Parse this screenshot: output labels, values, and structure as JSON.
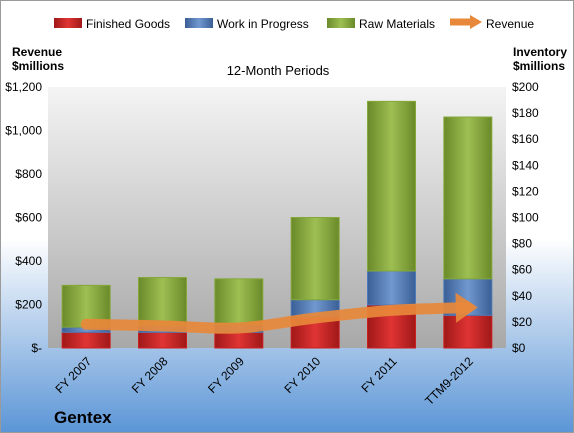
{
  "chart_data": {
    "type": "bar",
    "stacked": true,
    "subtitle": "12-Month Periods",
    "company": "Gentex",
    "categories": [
      "FY 2007",
      "FY 2008",
      "FY 2009",
      "FY 2010",
      "FY 2011",
      "TTM9-2012"
    ],
    "series": [
      {
        "name": "Finished Goods",
        "color": "#cc1f1f",
        "values": [
          12,
          12,
          12,
          24,
          33,
          25
        ]
      },
      {
        "name": "Work in Progress",
        "color": "#4f79b8",
        "values": [
          4,
          5,
          6,
          13,
          26,
          28
        ]
      },
      {
        "name": "Raw Materials",
        "color": "#84a83a",
        "values": [
          32,
          37,
          35,
          63,
          130,
          124
        ]
      }
    ],
    "line_series": {
      "name": "Revenue",
      "color": "#e8883a",
      "values": [
        109,
        102,
        92,
        138,
        173,
        186
      ]
    },
    "left_axis": {
      "title_line1": "Revenue",
      "title_line2": "$millions",
      "ylim": [
        0,
        1200
      ],
      "tick_labels": [
        "$-",
        "$200",
        "$400",
        "$600",
        "$800",
        "$1,000",
        "$1,200"
      ]
    },
    "right_axis": {
      "title_line1": "Inventory",
      "title_line2": "$millions",
      "ylim": [
        0,
        200
      ],
      "tick_labels": [
        "$0",
        "$20",
        "$40",
        "$60",
        "$80",
        "$100",
        "$120",
        "$140",
        "$160",
        "$180",
        "$200"
      ]
    },
    "legend_position": "top",
    "grid": false
  }
}
